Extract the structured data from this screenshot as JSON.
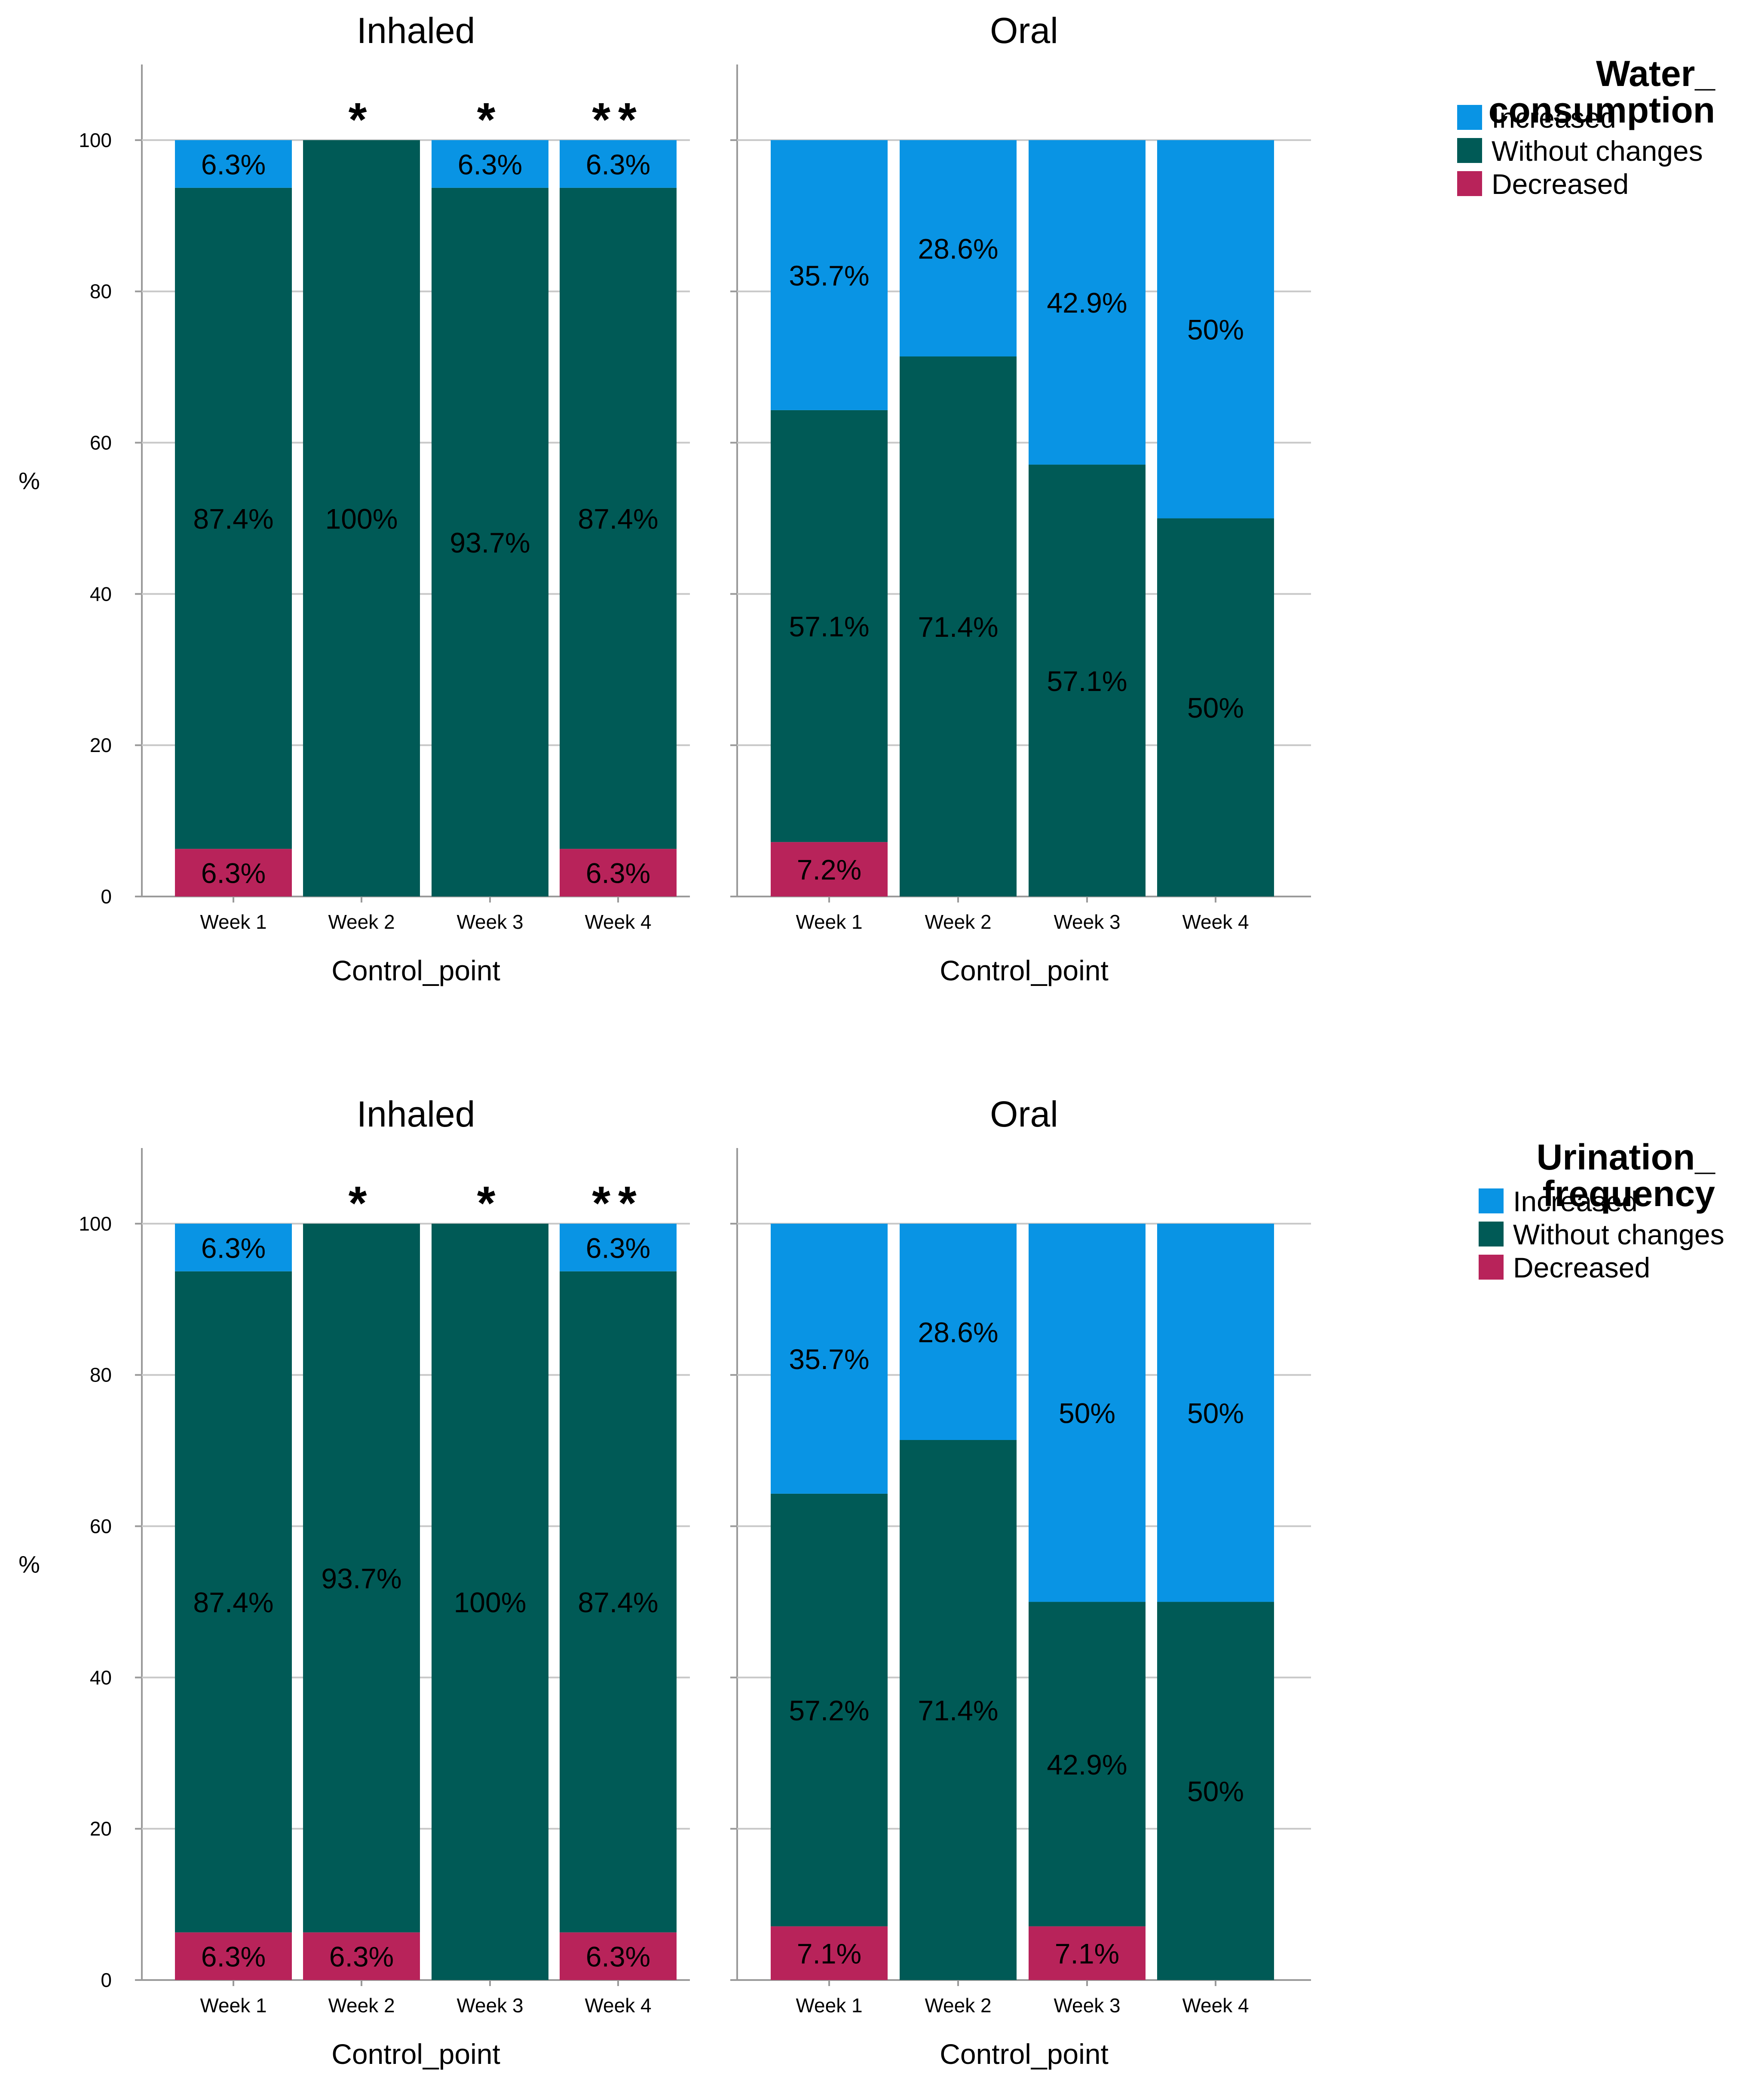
{
  "chart_data": [
    {
      "type": "bar",
      "stacked": true,
      "legend": {
        "title_lines": [
          "Water_",
          "consumption"
        ],
        "items": [
          {
            "name": "Increased",
            "color": "#0994E4"
          },
          {
            "name": "Without changes",
            "color": "#005A56"
          },
          {
            "name": "Decreased",
            "color": "#B8235A"
          }
        ]
      },
      "ylabel": "%",
      "ylim": [
        0,
        110
      ],
      "yticks": [
        0,
        20,
        40,
        60,
        80,
        100
      ],
      "grid": true,
      "panels": [
        {
          "title": "Inhaled",
          "xlabel": "Control_point",
          "categories": [
            "Week 1",
            "Week 2",
            "Week 3",
            "Week 4"
          ],
          "annotations": [
            "",
            "*",
            "*",
            "**"
          ],
          "series": [
            {
              "name": "Decreased",
              "values": [
                6.3,
                0,
                0,
                6.3
              ],
              "labels": [
                "6.3%",
                "",
                "",
                "6.3%"
              ]
            },
            {
              "name": "Without changes",
              "values": [
                87.4,
                100,
                93.7,
                87.4
              ],
              "labels": [
                "87.4%",
                "100%",
                "93.7%",
                "87.4%"
              ]
            },
            {
              "name": "Increased",
              "values": [
                6.3,
                0,
                6.3,
                6.3
              ],
              "labels": [
                "6.3%",
                "",
                "6.3%",
                "6.3%"
              ]
            }
          ]
        },
        {
          "title": "Oral",
          "xlabel": "Control_point",
          "categories": [
            "Week 1",
            "Week 2",
            "Week 3",
            "Week 4"
          ],
          "annotations": [
            "",
            "",
            "",
            ""
          ],
          "series": [
            {
              "name": "Decreased",
              "values": [
                7.2,
                0,
                0,
                0
              ],
              "labels": [
                "7.2%",
                "",
                "",
                ""
              ]
            },
            {
              "name": "Without changes",
              "values": [
                57.1,
                71.4,
                57.1,
                50
              ],
              "labels": [
                "57.1%",
                "71.4%",
                "57.1%",
                "50%"
              ]
            },
            {
              "name": "Increased",
              "values": [
                35.7,
                28.6,
                42.9,
                50
              ],
              "labels": [
                "35.7%",
                "28.6%",
                "42.9%",
                "50%"
              ]
            }
          ]
        }
      ]
    },
    {
      "type": "bar",
      "stacked": true,
      "legend": {
        "title_lines": [
          "Urination_",
          "frequency"
        ],
        "items": [
          {
            "name": "Increased",
            "color": "#0994E4"
          },
          {
            "name": "Without changes",
            "color": "#005A56"
          },
          {
            "name": "Decreased",
            "color": "#B8235A"
          }
        ]
      },
      "ylabel": "%",
      "ylim": [
        0,
        110
      ],
      "yticks": [
        0,
        20,
        40,
        60,
        80,
        100
      ],
      "grid": true,
      "panels": [
        {
          "title": "Inhaled",
          "xlabel": "Control_point",
          "categories": [
            "Week 1",
            "Week 2",
            "Week 3",
            "Week 4"
          ],
          "annotations": [
            "",
            "*",
            "*",
            "**"
          ],
          "series": [
            {
              "name": "Decreased",
              "values": [
                6.3,
                6.3,
                0,
                6.3
              ],
              "labels": [
                "6.3%",
                "6.3%",
                "",
                "6.3%"
              ]
            },
            {
              "name": "Without changes",
              "values": [
                87.4,
                93.7,
                100,
                87.4
              ],
              "labels": [
                "87.4%",
                "93.7%",
                "100%",
                "87.4%"
              ]
            },
            {
              "name": "Increased",
              "values": [
                6.3,
                0,
                0,
                6.3
              ],
              "labels": [
                "6.3%",
                "",
                "",
                "6.3%"
              ]
            }
          ]
        },
        {
          "title": "Oral",
          "xlabel": "Control_point",
          "categories": [
            "Week 1",
            "Week 2",
            "Week 3",
            "Week 4"
          ],
          "annotations": [
            "",
            "",
            "",
            ""
          ],
          "series": [
            {
              "name": "Decreased",
              "values": [
                7.1,
                0,
                7.1,
                0
              ],
              "labels": [
                "7.1%",
                "",
                "7.1%",
                ""
              ]
            },
            {
              "name": "Without changes",
              "values": [
                57.2,
                71.4,
                42.9,
                50
              ],
              "labels": [
                "57.2%",
                "71.4%",
                "42.9%",
                "50%"
              ]
            },
            {
              "name": "Increased",
              "values": [
                35.7,
                28.6,
                50,
                50
              ],
              "labels": [
                "35.7%",
                "28.6%",
                "50%",
                "50%"
              ]
            }
          ]
        }
      ]
    }
  ]
}
